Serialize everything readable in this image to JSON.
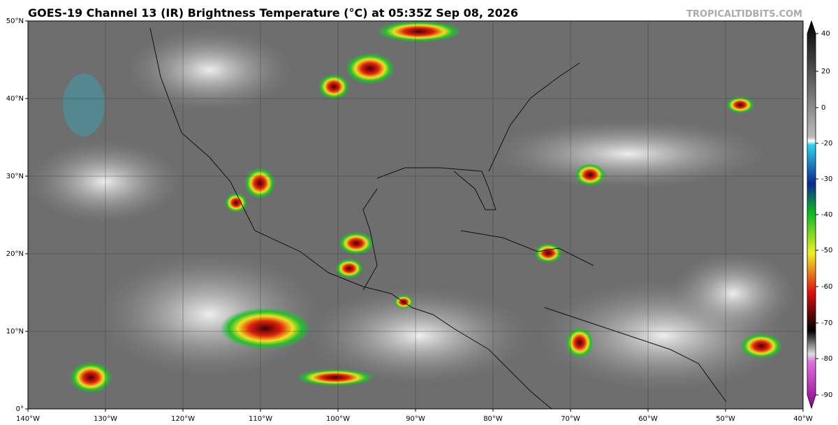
{
  "title": "GOES-19 Channel 13 (IR) Brightness Temperature (°C) at 05:35Z Sep 08, 2026",
  "watermark": "TROPICALTIDBITS.COM",
  "map": {
    "xlim": [
      -140,
      -40
    ],
    "ylim": [
      0,
      50
    ],
    "xticks": [
      {
        "value": -140,
        "label": "140°W"
      },
      {
        "value": -130,
        "label": "130°W"
      },
      {
        "value": -120,
        "label": "120°W"
      },
      {
        "value": -110,
        "label": "110°W"
      },
      {
        "value": -100,
        "label": "100°W"
      },
      {
        "value": -90,
        "label": "90°W"
      },
      {
        "value": -80,
        "label": "80°W"
      },
      {
        "value": -70,
        "label": "70°W"
      },
      {
        "value": -60,
        "label": "60°W"
      },
      {
        "value": -50,
        "label": "50°W"
      },
      {
        "value": -40,
        "label": "40°W"
      }
    ],
    "yticks": [
      {
        "value": 0,
        "label": "0°"
      },
      {
        "value": 10,
        "label": "10°N"
      },
      {
        "value": 20,
        "label": "20°N"
      },
      {
        "value": 30,
        "label": "30°N"
      },
      {
        "value": 40,
        "label": "40°N"
      },
      {
        "value": 50,
        "label": "50°N"
      }
    ],
    "grid": true
  },
  "colorbar": {
    "ticks": [
      40,
      20,
      0,
      -20,
      -30,
      -40,
      -50,
      -60,
      -70,
      -80,
      -90
    ]
  }
}
